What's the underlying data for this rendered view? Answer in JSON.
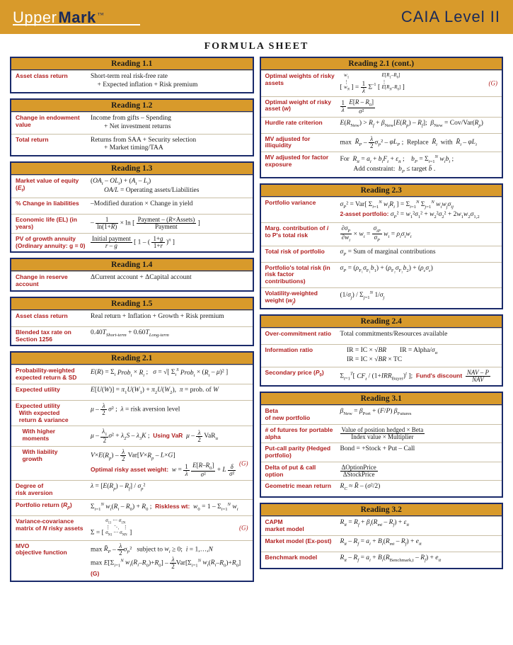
{
  "banner": {
    "logo_a": "Upper",
    "logo_b": "Mark",
    "logo_tm": "™",
    "caia": "CAIA Level II"
  },
  "title": "FORMULA SHEET",
  "left": [
    {
      "head": "Reading 1.1",
      "rows": [
        {
          "l": "Asset class return",
          "v": "Short-term real risk-free rate<br>&nbsp;&nbsp;&nbsp;&nbsp;+ Expected inflation + Risk premium"
        }
      ]
    },
    {
      "head": "Reading 1.2",
      "rows": [
        {
          "l": "Change in endowment value",
          "v": "Income from gifts – Spending<br>&nbsp;&nbsp;&nbsp;&nbsp;&nbsp;&nbsp;&nbsp;&nbsp;+ Net investment returns"
        },
        {
          "l": "Total return",
          "v": "Returns from SAA + Security selection<br>&nbsp;&nbsp;&nbsp;&nbsp;&nbsp;&nbsp;&nbsp;&nbsp;+ Market timing/TAA"
        }
      ]
    },
    {
      "head": "Reading 1.3",
      "rows": [
        {
          "l": "Market value of equity (<i>E<sub>t</sub></i>)",
          "v": "(<i>OA<sub>t</sub></i> – <i>OL<sub>t</sub></i>) + (<i>A<sub>t</sub></i> – <i>L<sub>t</sub></i>)<br>&nbsp;&nbsp;&nbsp;&nbsp;&nbsp;&nbsp;&nbsp;&nbsp;<i>OA/L</i> = Operating assets/Liabilities"
        },
        {
          "l": "% Change in liabilities",
          "v": "–Modified duration × Change in yield"
        },
        {
          "l": "Economic life (EL) (in years)",
          "v": "<span style='display:inline-block;vertical-align:middle'>–</span> <span class='frac'><span class='n'>1</span><span class='d'>ln(1+<i>R</i>)</span></span> × ln [ <span class='frac'><span class='n'>Payment – (<i>R</i>×Assets)</span><span class='d'>Payment</span></span> ]"
        },
        {
          "l": "PV of growth annuity (Ordinary annuity: g = 0)",
          "v": "<span class='frac'><span class='n'>Initial payment</span><span class='d'><i>r</i> – <i>g</i></span></span> [ 1 – ( <span class='frac'><span class='n'>1+<i>g</i></span><span class='d'>1+<i>r</i></span></span> )<sup><i>n</i></sup> ]"
        }
      ]
    },
    {
      "head": "Reading 1.4",
      "rows": [
        {
          "l": "Change in reserve account",
          "v": "ΔCurrent account + ΔCapital account"
        }
      ]
    },
    {
      "head": "Reading 1.5",
      "rows": [
        {
          "l": "Asset class return",
          "v": "Real return + Inflation + Growth + Risk premium"
        },
        {
          "l": "Blended tax rate on Section 1256",
          "v": "0.40<i>T</i><sub><i>Short-term</i></sub> + 0.60<i>T</i><sub><i>Long-term</i></sub>"
        }
      ]
    },
    {
      "head": "Reading 2.1",
      "rows": [
        {
          "l": "Probability-weighted expected return & SD",
          "v": "<i>E</i>(<i>R</i>) = Σ<sub><i>i</i></sub> <i>Prob<sub>i</sub></i> × <i>R<sub>i</sub></i> ;&nbsp;&nbsp; <i>σ</i> = √[ Σ<sub><i>i</i></sub><sup><i>S</i></sup> <i>Prob<sub>i</sub></i> × (<i>R<sub>i</sub></i> – <i>μ</i>)² ]"
        },
        {
          "l": "Expected utility",
          "v": "<i>E</i>[<i>U</i>(<i>W</i>)] = <i>π</i><sub>1</sub><i>U</i>(<i>W</i><sub>1</sub>) + <i>π</i><sub>2</sub><i>U</i>(<i>W</i><sub>2</sub>),&nbsp;&nbsp;<i>π</i> = prob. of <i>W</i>"
        },
        {
          "l": "Expected utility<br>&nbsp;&nbsp;With expected<br>&nbsp;&nbsp;return & variance",
          "v": "<i>μ</i> – <span class='frac'><span class='n'><i>λ</i></span><span class='d'>2</span></span> <i>σ</i>² ;&nbsp;&nbsp;<i>λ</i> = risk aversion level"
        },
        {
          "l": "&nbsp;&nbsp;&nbsp;&nbsp;With higher<br>&nbsp;&nbsp;&nbsp;&nbsp;moments",
          "v": "<i>μ</i> – <span class='frac'><span class='n'><i>λ</i><sub>1</sub></span><span class='d'>2</span></span><i>σ</i>² + <i>λ</i><sub>2</sub><i>S</i> – <i>λ</i><sub>3</sub><i>K</i> ;&nbsp;&nbsp;<span class='sub-red'>Using VaR</span>&nbsp;&nbsp;<i>μ</i> – <span class='frac'><span class='n'><i>λ</i></span><span class='d'>2</span></span> VaR<sub><i>α</i></sub>"
        },
        {
          "l": "&nbsp;&nbsp;&nbsp;&nbsp;With liability<br>&nbsp;&nbsp;&nbsp;&nbsp;growth",
          "v": "<i>V</i>×<i>E</i>(<i>R<sub>p</sub></i>) – <span class='frac'><span class='n'><i>λ</i></span><span class='d'>2</span></span> Var[<i>V</i>×<i>R<sub>p</sub></i> – <i>L</i>×<i>G</i>]<br><span class='sub-red'>Optimal risky asset weight:</span>&nbsp; <i>w</i> = <span class='frac'><span class='n'>1</span><span class='d'><i>λ</i></span></span> <span class='frac'><span class='n'><i>E</i>[<i>R</i>–<i>R</i><sub>0</sub>]</span><span class='d'><i>σ</i>²</span></span> + <i>L</i> <span class='frac'><span class='n'><i>δ</i></span><span class='d'><i>σ</i>²</span></span>",
          "g": "(G)"
        },
        {
          "l": "Degree of<br>risk aversion",
          "v": "<i>λ</i> = [<i>E</i>(<i>R<sub>p</sub></i>) – <i>R<sub>f</sub></i>] / <i>σ</i><sub><i>p</i></sub>²"
        },
        {
          "l": "Portfolio return (<i>R<sub>p</sub></i>)",
          "v": "Σ<sub><i>i</i>=1</sub><sup><i>N</i></sup> <i>w<sub>i</sub></i>(<i>R<sub>i</sub></i> – <i>R</i><sub>0</sub>) + <i>R</i><sub>0</sub> ;&nbsp;&nbsp;<span class='sub-red'>Riskless wt:</span>&nbsp; <i>w</i><sub>0</sub> = 1 – Σ<sub><i>i</i>=1</sub><sup><i>N</i></sup> <i>w<sub>i</sub></i>"
        },
        {
          "l": "Variance-covariance matrix of <i>N</i> risky assets",
          "v": "Σ = [ <span style='font-size:7px;display:inline-block;line-height:1'><i>σ</i><sub>11</sub> ⋯ <i>σ</i><sub>1N</sub><br>⋮ &nbsp;&nbsp;⋱ &nbsp;&nbsp;⋮<br><i>σ</i><sub>N1</sub> ⋯ <i>σ</i><sub>NN</sub></span> ]",
          "g": "(G)"
        },
        {
          "l": "MVO<br>objective function",
          "v": "max <i>R̄<sub>P</sub></i> – <span class='frac'><span class='n'><i>λ</i></span><span class='d'>2</span></span><i>σ</i><sub><i>P</i></sub>² &nbsp;&nbsp;subject to <i>w<sub>i</sub></i> ≥ 0; &nbsp;<i>i</i> = 1,…,<i>N</i><br>max <i>E</i>[Σ<sub><i>i</i>=1</sub><sup><i>N</i></sup> <i>w<sub>i</sub></i>(<i>R<sub>i</sub></i>–<i>R</i><sub>0</sub>)+<i>R</i><sub>0</sub>] – <span class='frac'><span class='n'><i>λ</i></span><span class='d'>2</span></span>Var[Σ<sub><i>i</i>=1</sub><sup><i>N</i></sup> <i>w<sub>i</sub></i>(<i>R<sub>i</sub></i>–<i>R</i><sub>0</sub>)+<i>R</i><sub>0</sub>] <span class='sub-red'>(G)</span>"
        }
      ]
    }
  ],
  "right": [
    {
      "head": "Reading 2.1 (cont.)",
      "rows": [
        {
          "l": "Optimal weights of risky assets",
          "v": "[ <span style='font-size:7px;display:inline-block;line-height:1'><i>w</i><sub>1</sub><br>⋮<br><i>w<sub>N</sub></i></span> ] = <span class='frac'><span class='n'>1</span><span class='d'><i>λ</i></span></span> Σ<sup>-1</sup> [ <span style='font-size:7px;display:inline-block;line-height:1'><i>E</i>[<i>R</i><sub>1</sub>–<i>R</i><sub>0</sub>]<br>⋮<br><i>E</i>[<i>R<sub>N</sub></i>–<i>R</i><sub>0</sub>]</span> ]",
          "g": "(G)"
        },
        {
          "l": "Optimal weight of risky asset (<i>w</i>)",
          "v": "<span class='frac'><span class='n'>1</span><span class='d'><i>λ</i></span></span> <span class='frac'><span class='n'><i>E</i>[<i>R</i> – <i>R</i><sub>0</sub>]</span><span class='d'><i>σ</i>²</span></span>"
        },
        {
          "l": "Hurdle rate criterion",
          "v": "<i>E</i>(<i>R</i><sub>New</sub>) > <i>R<sub>f</sub></i> + <i>β</i><sub>New</sub>[<i>E</i>(<i>R<sub>p</sub></i>) – <i>R<sub>f</sub></i>];&nbsp; <i>β</i><sub>New</sub> = Cov/Var(<i>R<sub>p</sub></i>)"
        },
        {
          "l": "MV adjusted for illiquidity",
          "v": "max&nbsp; <i>R̄<sub>P</sub></i> – <span class='frac'><span class='n'><i>λ</i></span><span class='d'>2</span></span><i>σ</i><sub><i>P</i></sub>² – <i>φL<sub>P</sub></i> ;&nbsp;&nbsp;Replace &nbsp;<i>R̄<sub>i</sub></i>&nbsp; with &nbsp;<i>R̄<sub>i</sub></i> – <i>φL<sub>i</sub></i>"
        },
        {
          "l": "MV adjusted for factor exposure",
          "v": "For&nbsp; <i>R<sub>it</sub></i> = <i>a<sub>i</sub></i> + <i>b<sub>i</sub>F<sub>t</sub></i> + <i>ε<sub>it</sub></i> ;&nbsp;&nbsp;&nbsp; <i>b<sub>P</sub></i> = Σ<sub><i>i</i>=1</sub><sup><i>N</i></sup> <i>w<sub>i</sub>b<sub>i</sub></i> ;<br>&nbsp;&nbsp;&nbsp;&nbsp;&nbsp;&nbsp;&nbsp;&nbsp;Add constraint:&nbsp; <i>b<sub>P</sub></i> ≤ target <i>b̄</i> ."
        }
      ]
    },
    {
      "head": "Reading 2.3",
      "rows": [
        {
          "l": "Portfolio variance",
          "v": "<i>σ</i><sub><i>P</i></sub>² = Var[ Σ<sub><i>i</i>=1</sub><sup><i>N</i></sup> <i>w<sub>i</sub>R<sub>i</sub></i> ] = Σ<sub><i>i</i>=1</sub><sup><i>N</i></sup> Σ<sub><i>j</i>=1</sub><sup><i>N</i></sup> <i>w<sub>i</sub>w<sub>j</sub>σ<sub>ij</sub></i><br><span class='sub-red'>2-asset portfolio:</span> <i>σ</i><sub><i>P</i></sub>² = <i>w</i><sub>1</sub>²<i>σ</i><sub>1</sub>² + <i>w</i><sub>2</sub>²<i>σ</i><sub>2</sub>² + 2<i>w</i><sub>1</sub><i>w</i><sub>2</sub><i>σ</i><sub>1,2</sub>"
        },
        {
          "l": "Marg. contribution of <i>i</i> to P's total risk",
          "v": "<span class='frac'><span class='n'>∂<i>σ<sub>P</sub></i></span><span class='d'>∂<i>w<sub>i</sub></i></span></span> × <i>w<sub>i</sub></i> = <span class='frac'><span class='n'><i>σ<sub>iP</sub></i></span><span class='d'><i>σ<sub>P</sub></i></span></span> <i>w<sub>i</sub></i> = <i>ρ<sub>i</sub>σ<sub>i</sub>w<sub>i</sub></i>"
        },
        {
          "l": "Total risk of portfolio",
          "v": "<i>σ<sub>P</sub></i> = Sum of marginal contributions"
        },
        {
          "l": "Portfolio's total risk (in risk factor contributions)",
          "v": "<i>σ<sub>P</sub></i> = (<i>ρ</i><sub>F₁</sub><i>σ</i><sub>F₁</sub><i>b</i><sub>1</sub>) + (<i>ρ</i><sub>F₂</sub><i>σ</i><sub>F₂</sub><i>b</i><sub>2</sub>) + (<i>ρ<sub>ε</sub>σ<sub>ε</sub></i>)"
        },
        {
          "l": "Volatility-weighted weight (<i>w<sub>j</sub></i>)",
          "v": "(1/<i>σ<sub>j</sub></i>) / Σ<sub><i>j</i>=1</sub><sup><i>N</i></sup> 1/<i>σ<sub>j</sub></i>"
        }
      ]
    },
    {
      "head": "Reading 2.4",
      "rows": [
        {
          "l": "Over-commitment ratio",
          "v": "Total commitments/Resources available"
        },
        {
          "l": "Information ratio",
          "v": "&nbsp;&nbsp;&nbsp;&nbsp;IR = IC × √<i>BR</i>&nbsp;&nbsp;&nbsp;&nbsp;&nbsp;&nbsp;&nbsp;&nbsp;IR = Alpha/<i>σ<sub>α</sub></i><br>&nbsp;&nbsp;&nbsp;&nbsp;IR = IC × √<i>BR</i> × TC"
        },
        {
          "l": "Secondary price (<i>P</i><sub>0</sub>)",
          "v": "Σ<sub><i>t</i>=1</sub><sup><i>T</i></sup>[ <i>CF<sub>t</sub></i> / (1+<i>IRR</i><sub>Buyer</sub>)<sup><i>t</i></sup> ];&nbsp;&nbsp;<span class='sub-red'>Fund's discount</span>&nbsp; <span class='frac'><span class='n'><i>NAV</i> – <i>P</i></span><span class='d'><i>NAV</i></span></span>"
        }
      ]
    },
    {
      "head": "Reading 3.1",
      "rows": [
        {
          "l": "Beta<br>of new portfolio",
          "v": "<i>β</i><sub>New</sub> = <i>β</i><sub>Port</sub> + (<i>F</i>/<i>P</i>) <i>β</i><sub>Futures</sub>"
        },
        {
          "l": "# of futures for portable alpha",
          "v": "<span class='frac'><span class='n'>Value of position hedged × Beta</span><span class='d'>Index value × Multiplier</span></span>"
        },
        {
          "l": "Put-call parity (Hedged portfolio)",
          "v": "Bond = +Stock + Put – Call"
        },
        {
          "l": "Delta of put & call option",
          "v": "<span class='frac'><span class='n'>ΔOptionPrice</span><span class='d'>ΔStockPrice</span></span>"
        },
        {
          "l": "Geometric mean return",
          "v": "<i>R<sub>C</sub></i> ≈ <i>R̄</i> – (<i>σ</i>²/2)"
        }
      ]
    },
    {
      "head": "Reading 3.2",
      "rows": [
        {
          "l": "CAPM<br>market model",
          "v": "<i>R<sub>it</sub></i> = <i>R<sub>f</sub></i> + <i>β<sub>i</sub></i>(<i>R<sub>mt</sub></i> – <i>R<sub>f</sub></i>) + <i>ε<sub>it</sub></i>"
        },
        {
          "l": "Market model (Ex-post)",
          "v": "<i>R<sub>it</sub></i> – <i>R<sub>f</sub></i> = <i>a<sub>i</sub></i> + <i>B<sub>i</sub></i>(<i>R<sub>mt</sub></i> – <i>R<sub>f</sub></i>) + <i>e<sub>it</sub></i>"
        },
        {
          "l": "Benchmark model",
          "v": "<i>R<sub>it</sub></i> – <i>R<sub>f</sub></i> = <i>a<sub>i</sub></i> + <i>B<sub>i</sub></i>(<i>R</i><sub>Benchmark,t</sub> – <i>R<sub>f</sub></i>) + <i>e<sub>it</sub></i>"
        }
      ]
    }
  ]
}
